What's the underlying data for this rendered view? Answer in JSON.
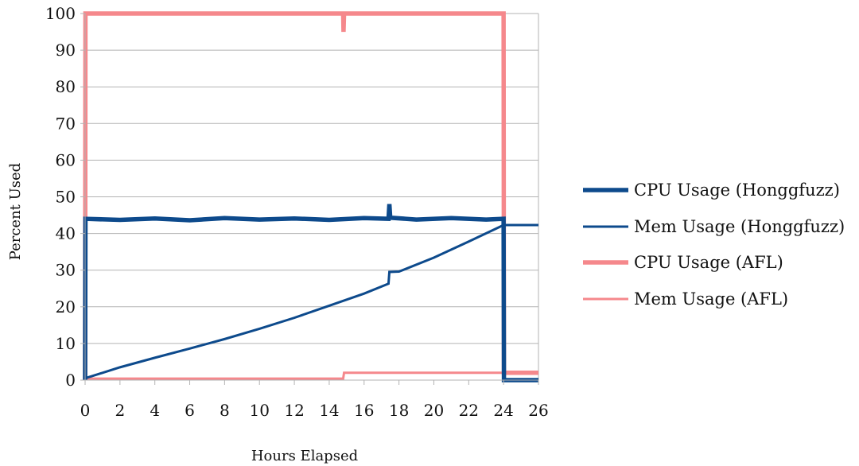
{
  "chart_data": {
    "type": "line",
    "title": "",
    "xlabel": "Hours Elapsed",
    "ylabel": "Percent Used",
    "xlim": [
      0,
      26
    ],
    "ylim": [
      0,
      100
    ],
    "xticks": [
      0,
      2,
      4,
      6,
      8,
      10,
      12,
      14,
      16,
      18,
      20,
      22,
      24,
      26
    ],
    "yticks": [
      0,
      10,
      20,
      30,
      40,
      50,
      60,
      70,
      80,
      90,
      100
    ],
    "grid": "horizontal",
    "legend_position": "right",
    "series": [
      {
        "name": "CPU Usage (Honggfuzz)",
        "color": "#0d4a8c",
        "style": "thick",
        "points": [
          [
            0,
            0
          ],
          [
            0.02,
            44
          ],
          [
            2,
            43.7
          ],
          [
            4,
            44.1
          ],
          [
            6,
            43.6
          ],
          [
            8,
            44.2
          ],
          [
            10,
            43.8
          ],
          [
            12,
            44.1
          ],
          [
            14,
            43.7
          ],
          [
            16,
            44.2
          ],
          [
            17.4,
            44
          ],
          [
            17.45,
            48
          ],
          [
            17.5,
            44.3
          ],
          [
            19,
            43.8
          ],
          [
            21,
            44.2
          ],
          [
            23,
            43.8
          ],
          [
            24,
            44
          ],
          [
            24.02,
            0
          ],
          [
            26,
            0
          ]
        ]
      },
      {
        "name": "Mem Usage (Honggfuzz)",
        "color": "#0d4a8c",
        "style": "thin",
        "points": [
          [
            0,
            0.5
          ],
          [
            2,
            3.5
          ],
          [
            4,
            6.1
          ],
          [
            6,
            8.6
          ],
          [
            8,
            11.2
          ],
          [
            10,
            14
          ],
          [
            12,
            17
          ],
          [
            14,
            20.3
          ],
          [
            16,
            23.6
          ],
          [
            17.4,
            26.3
          ],
          [
            17.45,
            29.5
          ],
          [
            18,
            29.6
          ],
          [
            20,
            33.4
          ],
          [
            22,
            37.8
          ],
          [
            24,
            42.3
          ],
          [
            26,
            42.3
          ]
        ]
      },
      {
        "name": "CPU Usage (AFL)",
        "color": "#f5888c",
        "style": "thick",
        "points": [
          [
            0,
            0
          ],
          [
            0.02,
            100
          ],
          [
            14.8,
            100
          ],
          [
            14.82,
            95
          ],
          [
            14.85,
            100
          ],
          [
            24,
            100
          ],
          [
            24.02,
            2
          ],
          [
            26,
            2
          ]
        ]
      },
      {
        "name": "Mem Usage (AFL)",
        "color": "#f5888c",
        "style": "thin",
        "points": [
          [
            0,
            0.4
          ],
          [
            14.8,
            0.4
          ],
          [
            14.85,
            2
          ],
          [
            26,
            2
          ]
        ]
      }
    ]
  }
}
